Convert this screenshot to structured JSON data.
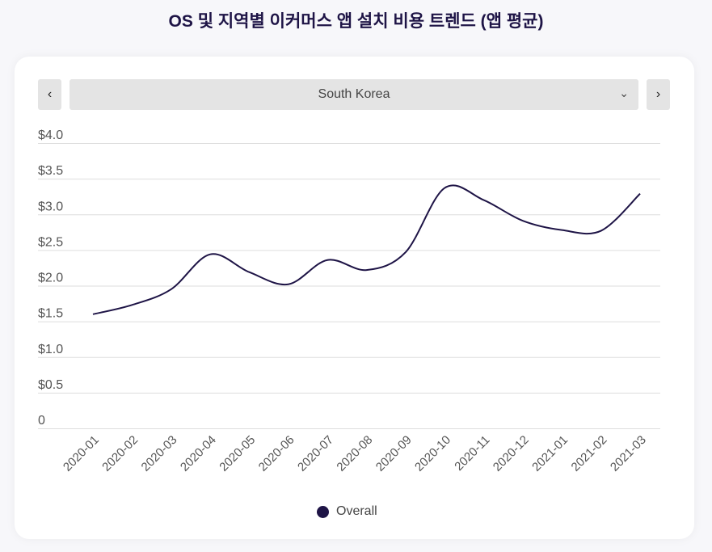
{
  "title": "OS 및 지역별 이커머스 앱 설치 비용 트렌드 (앱 평균)",
  "selector": {
    "value": "South Korea",
    "prev_icon": "chevron-left-icon",
    "next_icon": "chevron-right-icon"
  },
  "chart_data": {
    "type": "line",
    "title": "OS 및 지역별 이커머스 앱 설치 비용 트렌드 (앱 평균)",
    "categories": [
      "2020-01",
      "2020-02",
      "2020-03",
      "2020-04",
      "2020-05",
      "2020-06",
      "2020-07",
      "2020-08",
      "2020-09",
      "2020-10",
      "2020-11",
      "2020-12",
      "2021-01",
      "2021-02",
      "2021-03"
    ],
    "series": [
      {
        "name": "Overall",
        "color": "#1e1446",
        "values": [
          1.6,
          1.73,
          1.95,
          2.44,
          2.19,
          2.02,
          2.36,
          2.22,
          2.47,
          3.37,
          3.2,
          2.91,
          2.78,
          2.77,
          3.29
        ]
      }
    ],
    "yticks": [
      "0",
      "$0.5",
      "$1.0",
      "$1.5",
      "$2.0",
      "$2.5",
      "$3.0",
      "$3.5",
      "$4.0"
    ],
    "ylim": [
      0,
      4
    ],
    "grid": true,
    "legend": "bottom"
  }
}
